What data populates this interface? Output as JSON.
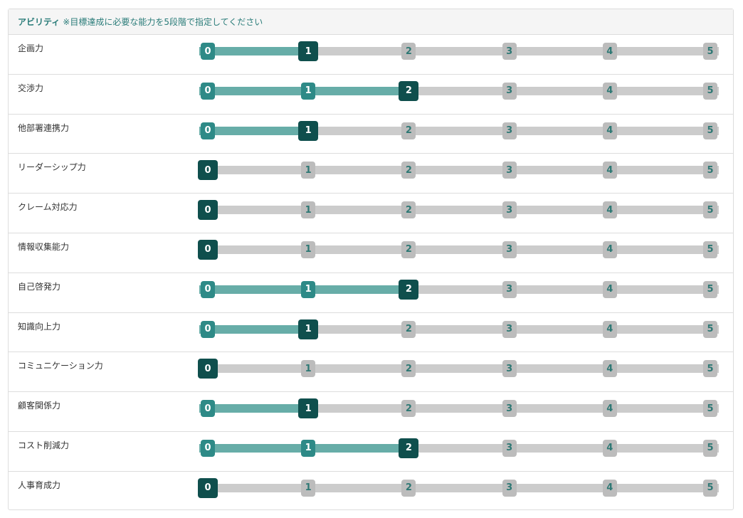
{
  "panel": {
    "title": "アビリティ",
    "note": "※目標達成に必要な能力を5段階で指定してください"
  },
  "colors": {
    "track": "#cccccc",
    "fill": "#67ada8",
    "knob_inactive": "#bcbcbc",
    "knob_done": "#2e8a87",
    "knob_selected": "#0f4f4d",
    "title_text": "#2a7c79"
  },
  "scale": {
    "min": 0,
    "max": 5,
    "steps": [
      "0",
      "1",
      "2",
      "3",
      "4",
      "5"
    ]
  },
  "abilities": [
    {
      "label": "企画力",
      "value": 1
    },
    {
      "label": "交渉力",
      "value": 2
    },
    {
      "label": "他部署連携力",
      "value": 1
    },
    {
      "label": "リーダーシップ力",
      "value": 0
    },
    {
      "label": "クレーム対応力",
      "value": 0
    },
    {
      "label": "情報収集能力",
      "value": 0
    },
    {
      "label": "自己啓発力",
      "value": 2
    },
    {
      "label": "知識向上力",
      "value": 1
    },
    {
      "label": "コミュニケーション力",
      "value": 0
    },
    {
      "label": "顧客関係力",
      "value": 1
    },
    {
      "label": "コスト削減力",
      "value": 2
    },
    {
      "label": "人事育成力",
      "value": 0
    }
  ]
}
